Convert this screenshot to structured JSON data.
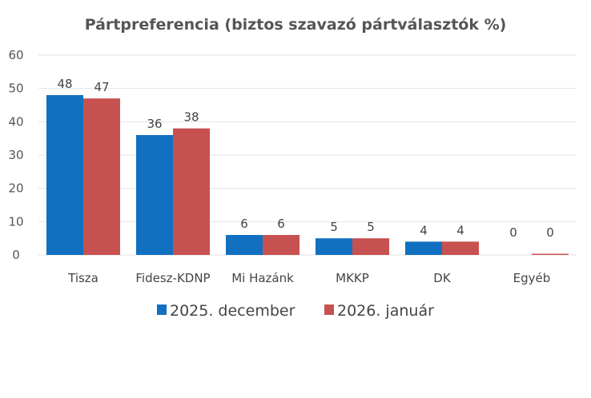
{
  "chart_data": {
    "type": "bar",
    "title": "Pártpreferencia (biztos szavazó pártválasztók %)",
    "xlabel": "",
    "ylabel": "",
    "ylim": [
      0,
      60
    ],
    "yticks": [
      0,
      10,
      20,
      30,
      40,
      50,
      60
    ],
    "grid": true,
    "legend_position": "bottom",
    "categories": [
      "Tisza",
      "Fidesz-KDNP",
      "Mi Hazánk",
      "MKKP",
      "DK",
      "Egyéb"
    ],
    "series": [
      {
        "name": "2025. december",
        "color": "#1170C0",
        "values": [
          48,
          36,
          6,
          5,
          4,
          0
        ]
      },
      {
        "name": "2026. január",
        "color": "#C75150",
        "values": [
          47,
          38,
          6,
          5,
          4,
          0
        ]
      }
    ]
  }
}
